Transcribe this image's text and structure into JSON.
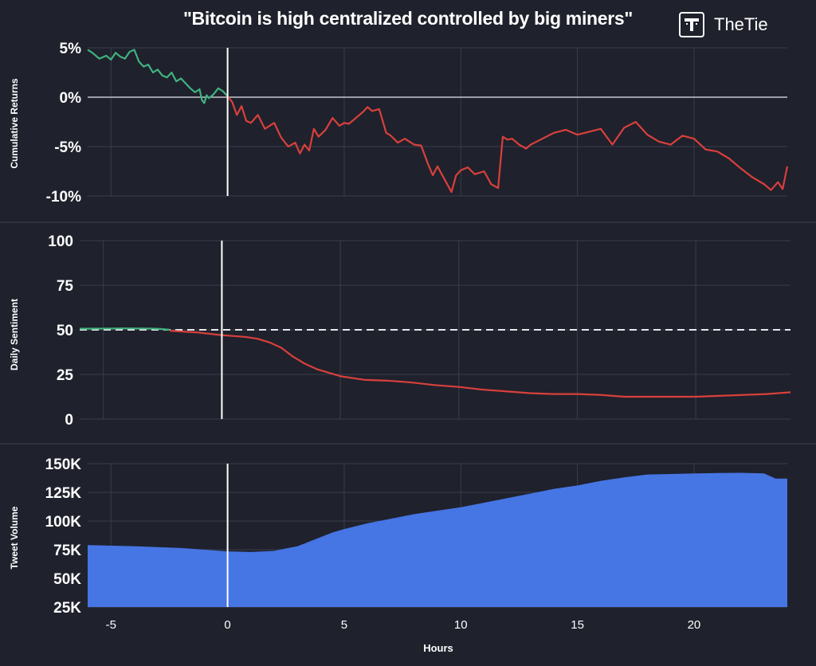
{
  "header": {
    "title": "\"Bitcoin is high centralized controlled by big miners\"",
    "brand": "TheTie",
    "logo_icon": "thetie-logo-icon"
  },
  "colors": {
    "background": "#1f212c",
    "grid": "#3a3d4b",
    "positive": "#3fb27f",
    "negative": "#d8403c",
    "volume_fill": "#4675e4",
    "reference_line": "#ffffff"
  },
  "chart_data": [
    {
      "id": "returns",
      "type": "line",
      "ylabel": "Cumulative Returns",
      "ylim": [
        -10,
        5
      ],
      "xlim": [
        -6,
        24
      ],
      "yticks": [
        -10,
        -5,
        0,
        5
      ],
      "ytick_labels": [
        "-10%",
        "-5%",
        "0%",
        "5%"
      ],
      "baseline": 0,
      "event_x": 0,
      "grid": true,
      "series": [
        {
          "x": [
            -6,
            -5.8,
            -5.5,
            -5.2,
            -5,
            -4.8,
            -4.6,
            -4.4,
            -4.2,
            -4,
            -3.8,
            -3.6,
            -3.4,
            -3.2,
            -3,
            -2.8,
            -2.6,
            -2.4,
            -2.2,
            -2,
            -1.8,
            -1.6,
            -1.4,
            -1.2,
            -1.1,
            -1,
            -0.9,
            -0.8,
            -0.6,
            -0.4,
            -0.2,
            0
          ],
          "y": [
            4.8,
            4.5,
            3.9,
            4.2,
            3.8,
            4.5,
            4.1,
            3.9,
            4.6,
            4.8,
            3.6,
            3.1,
            3.3,
            2.5,
            2.8,
            2.2,
            2.0,
            2.5,
            1.6,
            1.9,
            1.4,
            0.9,
            0.5,
            0.8,
            -0.3,
            -0.6,
            0.2,
            -0.1,
            0.3,
            0.9,
            0.6,
            0.1
          ]
        }
      ],
      "series_after": [
        {
          "x": [
            0,
            0.2,
            0.4,
            0.6,
            0.8,
            1,
            1.3,
            1.6,
            2,
            2.3,
            2.6,
            2.9,
            3.1,
            3.3,
            3.5,
            3.7,
            3.9,
            4.2,
            4.5,
            4.8,
            5,
            5.2,
            5.5,
            5.8,
            6,
            6.2,
            6.5,
            6.8,
            7,
            7.3,
            7.6,
            8,
            8.3,
            8.6,
            8.8,
            9,
            9.3,
            9.6,
            9.8,
            10,
            10.3,
            10.6,
            11,
            11.3,
            11.6,
            11.8,
            12,
            12.2,
            12.5,
            12.8,
            13,
            13.5,
            14,
            14.5,
            15,
            15.5,
            16,
            16.5,
            17,
            17.5,
            18,
            18.5,
            19,
            19.5,
            20,
            20.5,
            21,
            21.5,
            22,
            22.5,
            23,
            23.3,
            23.6,
            23.8,
            24
          ],
          "y": [
            0.1,
            -0.5,
            -1.8,
            -0.9,
            -2.4,
            -2.6,
            -1.8,
            -3.2,
            -2.6,
            -4.1,
            -5.0,
            -4.6,
            -5.7,
            -4.8,
            -5.4,
            -3.2,
            -4.0,
            -3.3,
            -2.1,
            -2.9,
            -2.6,
            -2.7,
            -2.1,
            -1.5,
            -1.0,
            -1.4,
            -1.2,
            -3.6,
            -3.9,
            -4.6,
            -4.2,
            -4.8,
            -4.9,
            -6.8,
            -7.9,
            -7.0,
            -8.3,
            -9.6,
            -7.9,
            -7.4,
            -7.1,
            -7.8,
            -7.5,
            -8.8,
            -9.2,
            -4.0,
            -4.3,
            -4.2,
            -4.8,
            -5.2,
            -4.8,
            -4.2,
            -3.6,
            -3.3,
            -3.8,
            -3.5,
            -3.2,
            -4.8,
            -3.1,
            -2.5,
            -3.8,
            -4.5,
            -4.8,
            -3.9,
            -4.2,
            -5.3,
            -5.5,
            -6.2,
            -7.2,
            -8.1,
            -8.8,
            -9.4,
            -8.6,
            -9.3,
            -7.0
          ]
        }
      ]
    },
    {
      "id": "sentiment",
      "type": "line",
      "ylabel": "Daily Sentiment",
      "ylim": [
        0,
        100
      ],
      "xlim": [
        -6,
        24
      ],
      "yticks": [
        0,
        25,
        50,
        75,
        100
      ],
      "ytick_labels": [
        "0",
        "25",
        "50",
        "75",
        "100"
      ],
      "reference_value": 50,
      "event_x": 0,
      "grid": true,
      "series": [
        {
          "x": [
            -6,
            -5,
            -4,
            -3,
            -2.6,
            -2.2
          ],
          "y": [
            50.6,
            50.7,
            50.8,
            50.7,
            50.5,
            50.0
          ]
        }
      ],
      "series_after": [
        {
          "x": [
            -2.2,
            -1,
            0,
            0.5,
            1,
            1.5,
            2,
            2.5,
            3,
            3.5,
            4,
            5,
            6,
            7,
            8,
            9,
            10,
            11,
            12,
            13,
            14,
            15,
            16,
            17,
            18,
            19,
            20,
            21,
            22,
            23,
            24
          ],
          "y": [
            49.5,
            48.5,
            47,
            46.5,
            46,
            45,
            43,
            40,
            35,
            31,
            28,
            24,
            22,
            21.5,
            20.5,
            19,
            18,
            16.5,
            15.5,
            14.5,
            14,
            14,
            13.5,
            12.5,
            12.5,
            12.5,
            12.5,
            13,
            13.5,
            14,
            15
          ]
        }
      ]
    },
    {
      "id": "volume",
      "type": "area",
      "ylabel": "Tweet Volume",
      "ylim": [
        25000,
        150000
      ],
      "xlim": [
        -6,
        24
      ],
      "yticks": [
        25000,
        50000,
        75000,
        100000,
        125000,
        150000
      ],
      "ytick_labels": [
        "25K",
        "50K",
        "75K",
        "100K",
        "125K",
        "150K"
      ],
      "event_x": 0,
      "grid": true,
      "xlabel": "Hours",
      "xticks": [
        -5,
        0,
        5,
        10,
        15,
        20
      ],
      "xtick_labels": [
        "-5",
        "0",
        "5",
        "10",
        "15",
        "20"
      ],
      "series": [
        {
          "x": [
            -6,
            -4,
            -2,
            -1,
            0,
            1,
            2,
            2.5,
            3,
            3.5,
            4,
            4.5,
            5,
            6,
            7,
            8,
            9,
            10,
            11,
            12,
            13,
            14,
            15,
            16,
            17,
            18,
            19,
            20,
            21,
            22,
            23,
            23.5,
            24
          ],
          "y": [
            79000,
            78000,
            76500,
            75000,
            73500,
            73000,
            74000,
            76000,
            78000,
            82000,
            86000,
            90000,
            93000,
            98000,
            102000,
            106000,
            109000,
            112000,
            116000,
            120000,
            124000,
            128000,
            131000,
            135000,
            138000,
            140500,
            141000,
            141500,
            141800,
            142000,
            141500,
            137000,
            137000
          ]
        }
      ]
    }
  ]
}
